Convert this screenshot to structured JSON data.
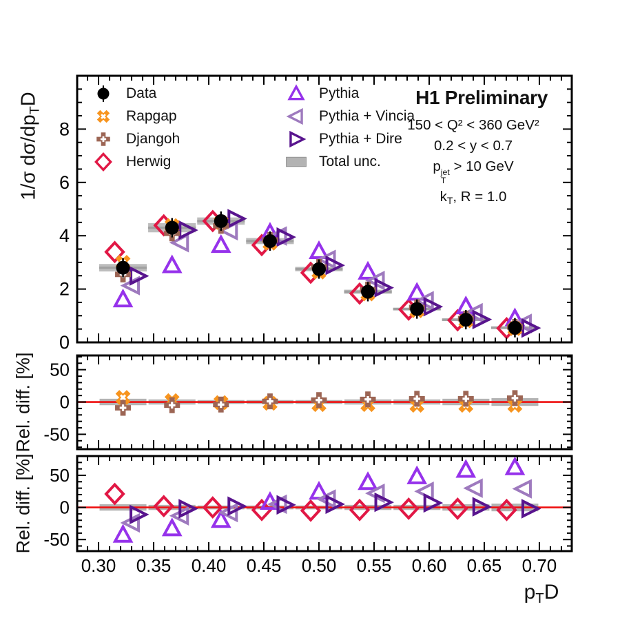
{
  "header": {
    "title": "H1 Preliminary",
    "cuts": {
      "q2": "150 < Q² < 360 GeV²",
      "y": "0.2 < y < 0.7",
      "ptjet_base": "p",
      "ptjet_sup": "jet",
      "ptjet_sub": "T",
      "ptjet_rest": " > 10 GeV",
      "kt_base": "k",
      "kt_sub": "T",
      "kt_rest": ", R = 1.0"
    }
  },
  "axes": {
    "x": {
      "label_base": "p",
      "label_sub": "T",
      "label_rest": "D",
      "ticks": [
        {
          "v": 0.3,
          "t": "0.30"
        },
        {
          "v": 0.35,
          "t": "0.35"
        },
        {
          "v": 0.4,
          "t": "0.40"
        },
        {
          "v": 0.45,
          "t": "0.45"
        },
        {
          "v": 0.5,
          "t": "0.50"
        },
        {
          "v": 0.55,
          "t": "0.55"
        },
        {
          "v": 0.6,
          "t": "0.60"
        },
        {
          "v": 0.65,
          "t": "0.65"
        },
        {
          "v": 0.7,
          "t": "0.70"
        }
      ]
    },
    "y_main": {
      "label_pre": "1/σ dσ/dp",
      "label_sub": "T",
      "label_post": "D",
      "ticks": [
        {
          "v": 0,
          "t": "0"
        },
        {
          "v": 2,
          "t": "2"
        },
        {
          "v": 4,
          "t": "4"
        },
        {
          "v": 6,
          "t": "6"
        },
        {
          "v": 8,
          "t": "8"
        }
      ]
    },
    "y_ratio_label": "Rel. diff. [%]",
    "ratio_ticks": [
      {
        "v": 50,
        "t": "50"
      },
      {
        "v": 0,
        "t": "0"
      },
      {
        "v": -50,
        "t": "-50"
      }
    ]
  },
  "legend": {
    "order": [
      "data",
      "rapgap",
      "djangoh",
      "herwig",
      "pythia",
      "vincia",
      "dire",
      "totalunc"
    ]
  },
  "series_meta": {
    "data": {
      "label": "Data",
      "marker": "circle",
      "color": "#000000",
      "offset": 0
    },
    "rapgap": {
      "label": "Rapgap",
      "marker": "cross-x",
      "color": "#F7941E",
      "offset": 0
    },
    "djangoh": {
      "label": "Djangoh",
      "marker": "cross-plus",
      "color": "#9C6554",
      "offset": 0
    },
    "herwig": {
      "label": "Herwig",
      "marker": "diamond",
      "color": "#E11845",
      "offset": -12
    },
    "pythia": {
      "label": "Pythia",
      "marker": "triangle-up",
      "color": "#9632EB",
      "offset": 0
    },
    "vincia": {
      "label": "Pythia + Vincia",
      "marker": "triangle-left",
      "color": "#9E7ABE",
      "offset": 13
    },
    "dire": {
      "label": "Pythia + Dire",
      "marker": "triangle-right",
      "color": "#58148E",
      "offset": 21
    },
    "totalunc": {
      "label": "Total unc.",
      "marker": "band",
      "color": "#B3B3B3"
    }
  },
  "chart_data": {
    "type": "scatter",
    "title": "H1 Preliminary",
    "xlabel": "pTD",
    "ylabel_main": "1/σ dσ/dpTD",
    "ylabel_ratio": "Rel. diff. [%]",
    "annotations": [
      "150 < Q² < 360 GeV²",
      "0.2 < y < 0.7",
      "pTjet > 10 GeV",
      "kT, R = 1.0"
    ],
    "legend_position": "top-left-and-top-right-inside",
    "grid": false,
    "xlim": [
      0.2806,
      0.7294
    ],
    "x_bin_edges": [
      0.3,
      0.3444,
      0.3889,
      0.4333,
      0.4778,
      0.5222,
      0.5667,
      0.6111,
      0.6556,
      0.7
    ],
    "x_bin_centers": [
      0.3222,
      0.3667,
      0.4111,
      0.4556,
      0.5,
      0.5444,
      0.5889,
      0.6333,
      0.6778
    ],
    "main_panel": {
      "ylim": [
        0,
        10
      ],
      "series": [
        {
          "id": "herwig",
          "values": [
            3.39,
            4.39,
            4.55,
            3.65,
            2.61,
            1.83,
            1.23,
            0.83,
            0.53
          ]
        },
        {
          "id": "pythia",
          "values": [
            1.6,
            2.88,
            3.64,
            4.1,
            3.41,
            2.64,
            1.85,
            1.34,
            0.89
          ]
        },
        {
          "id": "vincia",
          "values": [
            2.13,
            3.74,
            4.19,
            3.99,
            3.11,
            2.32,
            1.56,
            1.11,
            0.71
          ]
        },
        {
          "id": "dire",
          "values": [
            2.49,
            4.21,
            4.64,
            3.95,
            2.89,
            2.05,
            1.34,
            0.86,
            0.54
          ]
        },
        {
          "id": "rapgap",
          "values": [
            3.0,
            4.38,
            4.5,
            3.72,
            2.64,
            1.82,
            1.19,
            0.81,
            0.52
          ]
        },
        {
          "id": "djangoh",
          "values": [
            2.55,
            4.09,
            4.37,
            3.84,
            2.83,
            1.98,
            1.31,
            0.89,
            0.58
          ]
        },
        {
          "id": "data",
          "values": [
            2.8,
            4.3,
            4.55,
            3.8,
            2.75,
            1.9,
            1.25,
            0.85,
            0.55
          ]
        }
      ],
      "total_unc_pct": [
        5,
        4,
        3,
        3,
        3,
        4,
        4,
        5,
        6
      ]
    },
    "ratio_panel_1": {
      "ylim": [
        -73,
        72
      ],
      "zero_line_color": "#EE1111",
      "band_halfwidth_pct": [
        5,
        4,
        3,
        3,
        3,
        4,
        4,
        5,
        6
      ],
      "series": [
        {
          "id": "rapgap",
          "values": [
            7,
            2,
            -1,
            -2,
            -4,
            -4,
            -5,
            -5,
            -5
          ]
        },
        {
          "id": "djangoh",
          "values": [
            -9,
            -5,
            -4,
            1,
            3,
            4,
            5,
            5,
            6
          ]
        }
      ]
    },
    "ratio_panel_2": {
      "ylim": [
        -68,
        80
      ],
      "zero_line_color": "#EE1111",
      "band_halfwidth_pct": [
        5,
        4,
        3,
        3,
        3,
        4,
        4,
        5,
        6
      ],
      "series": [
        {
          "id": "herwig",
          "values": [
            21,
            2,
            0,
            -4,
            -5,
            -4,
            -2,
            -2,
            -4
          ]
        },
        {
          "id": "pythia",
          "values": [
            -43,
            -33,
            -20,
            8,
            24,
            39,
            48,
            58,
            62
          ]
        },
        {
          "id": "vincia",
          "values": [
            -24,
            -13,
            -8,
            5,
            13,
            22,
            25,
            30,
            29
          ]
        },
        {
          "id": "dire",
          "values": [
            -11,
            -2,
            2,
            4,
            5,
            8,
            7,
            1,
            -2
          ]
        }
      ]
    }
  }
}
